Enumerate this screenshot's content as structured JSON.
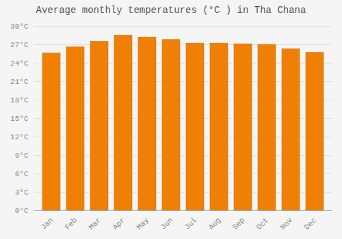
{
  "chart_data": {
    "type": "bar",
    "title": "Average monthly temperatures (°C ) in Tha Chana",
    "categories": [
      "Jan",
      "Feb",
      "Mar",
      "Apr",
      "May",
      "Jun",
      "Jul",
      "Aug",
      "Sep",
      "Oct",
      "Nov",
      "Dec"
    ],
    "values": [
      25.6,
      26.6,
      27.5,
      28.5,
      28.2,
      27.8,
      27.2,
      27.2,
      27.1,
      27.0,
      26.3,
      25.7
    ],
    "color": "#F08005",
    "ylim": [
      0,
      30
    ],
    "yticks": [
      {
        "value": 0,
        "label": "0°C"
      },
      {
        "value": 3,
        "label": "3°C"
      },
      {
        "value": 6,
        "label": "6°C"
      },
      {
        "value": 9,
        "label": "9°C"
      },
      {
        "value": 12,
        "label": "12°C"
      },
      {
        "value": 15,
        "label": "15°C"
      },
      {
        "value": 18,
        "label": "18°C"
      },
      {
        "value": 21,
        "label": "21°C"
      },
      {
        "value": 24,
        "label": "24°C"
      },
      {
        "value": 27,
        "label": "27°C"
      },
      {
        "value": 30,
        "label": "30°C"
      }
    ],
    "grid": true
  }
}
